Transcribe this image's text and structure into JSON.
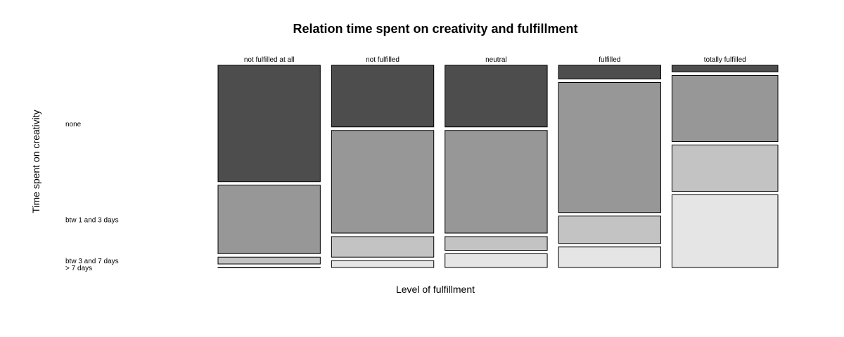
{
  "chart_data": {
    "type": "mosaic",
    "title": "Relation time spent on creativity and fulfillment",
    "xlabel": "Level of fulfillment",
    "ylabel": "Time spent on creativity",
    "column_categories": [
      "not fulfilled at all",
      "not fulfilled",
      "neutral",
      "fulfilled",
      "totally fulfilled"
    ],
    "row_categories": [
      "none",
      "btw 1 and 3 days",
      "btw 3 and 7 days",
      "> 7 days"
    ],
    "fill_colors": [
      "#4d4d4d",
      "#979797",
      "#c3c3c3",
      "#e5e5e5"
    ],
    "counts": [
      [
        17,
        10,
        1,
        0
      ],
      [
        9,
        15,
        3,
        1
      ],
      [
        9,
        15,
        2,
        2
      ],
      [
        2,
        19,
        4,
        3
      ],
      [
        1,
        10,
        7,
        11
      ]
    ]
  }
}
